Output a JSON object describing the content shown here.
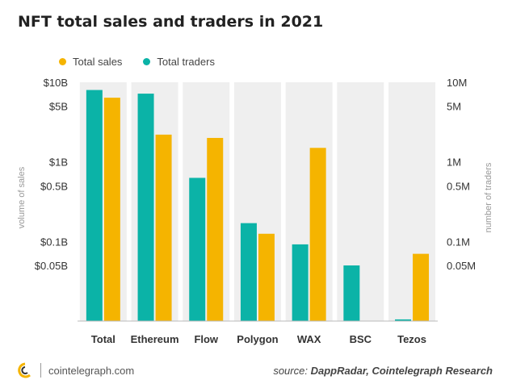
{
  "title": "NFT total sales and traders in 2021",
  "legend": [
    {
      "label": "Total sales",
      "color": "#f5b400"
    },
    {
      "label": "Total traders",
      "color": "#0bb3a7"
    }
  ],
  "footer": {
    "site": "cointelegraph.com",
    "source_prefix": "source:",
    "source_text": "DappRadar, Cointelegraph Research"
  },
  "chart_data": {
    "type": "bar",
    "scale": "log",
    "categories": [
      "Total",
      "Ethereum",
      "Flow",
      "Polygon",
      "WAX",
      "BSC",
      "Tezos"
    ],
    "series": [
      {
        "name": "Total traders",
        "color": "#0bb3a7",
        "axis": "right",
        "values": [
          8000000,
          7200000,
          630000,
          170000,
          92000,
          50000,
          10500
        ]
      },
      {
        "name": "Total sales",
        "color": "#f5b400",
        "axis": "left",
        "values": [
          6400000000,
          2200000000,
          2000000000,
          125000000,
          1500000000,
          10100000,
          70000000
        ]
      }
    ],
    "ylabel_left": "volume of sales",
    "ylabel_right": "number of traders",
    "ylim_left": [
      10000000,
      10000000000
    ],
    "ylim_right": [
      10000,
      10000000
    ],
    "left_ticks": [
      {
        "value": 10000000000,
        "label": "$10B"
      },
      {
        "value": 5000000000,
        "label": "$5B"
      },
      {
        "value": 1000000000,
        "label": "$1B"
      },
      {
        "value": 500000000,
        "label": "$0.5B"
      },
      {
        "value": 100000000,
        "label": "$0.1B"
      },
      {
        "value": 50000000,
        "label": "$0.05B"
      }
    ],
    "right_ticks": [
      {
        "value": 10000000,
        "label": "10M"
      },
      {
        "value": 5000000,
        "label": "5M"
      },
      {
        "value": 1000000,
        "label": "1M"
      },
      {
        "value": 500000,
        "label": "0.5M"
      },
      {
        "value": 100000,
        "label": "0.1M"
      },
      {
        "value": 50000,
        "label": "0.05M"
      }
    ],
    "grid": false
  }
}
